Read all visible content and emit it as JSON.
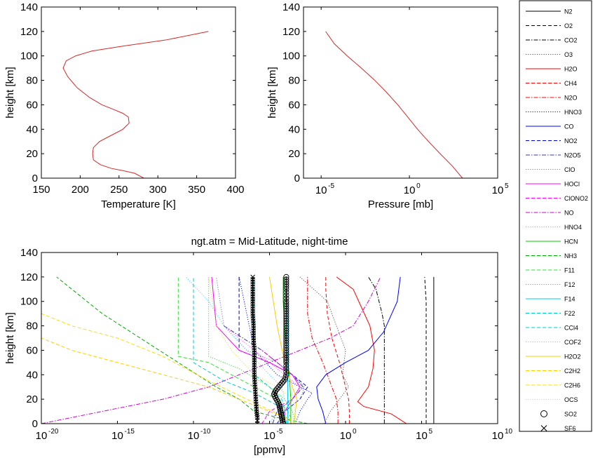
{
  "chart_data": [
    {
      "type": "line",
      "title": "",
      "xlabel": "Temperature [K]",
      "ylabel": "height [km]",
      "xlim": [
        150,
        400
      ],
      "ylim": [
        0,
        140
      ],
      "x_ticks": [
        "150",
        "200",
        "250",
        "300",
        "350",
        "400"
      ],
      "y_ticks": [
        "0",
        "20",
        "40",
        "60",
        "80",
        "100",
        "120",
        "140"
      ],
      "series": [
        {
          "color": "#d62728",
          "x": [
            282,
            270,
            256,
            240,
            226,
            217,
            216,
            217,
            225,
            240,
            255,
            263,
            262,
            255,
            240,
            228,
            212,
            196,
            184,
            178,
            182,
            194,
            215,
            255,
            310,
            365
          ],
          "y": [
            0,
            4,
            6,
            8,
            11,
            15,
            20,
            25,
            30,
            35,
            40,
            45,
            50,
            53,
            57,
            60,
            66,
            74,
            83,
            90,
            96,
            100,
            104,
            108,
            113,
            120
          ]
        }
      ]
    },
    {
      "type": "line",
      "title": "",
      "xlabel": "Pressure [mb]",
      "ylabel": "height [km]",
      "xscale": "log",
      "xlim": [
        1e-06,
        100000
      ],
      "ylim": [
        0,
        140
      ],
      "x_ticks": [
        {
          "base": "10",
          "exp": "-5"
        },
        {
          "base": "10",
          "exp": "0"
        },
        {
          "base": "10",
          "exp": "5"
        }
      ],
      "y_ticks": [
        "0",
        "20",
        "40",
        "60",
        "80",
        "100",
        "120",
        "140"
      ],
      "series": [
        {
          "color": "#d62728",
          "x": [
            1013,
            265,
            55,
            12,
            2.9,
            0.8,
            0.22,
            0.052,
            0.011,
            0.0019,
            0.0003,
            5.5e-05,
            1.8e-05
          ],
          "y": [
            0,
            10,
            20,
            30,
            40,
            50,
            60,
            70,
            80,
            90,
            100,
            110,
            120
          ]
        }
      ]
    },
    {
      "type": "line",
      "title": "ngt.atm = Mid-Latitude, night-time",
      "xlabel": "[ppmv]",
      "ylabel": "height [km]",
      "xscale": "log",
      "xlim": [
        1e-20,
        10000000000.0
      ],
      "ylim": [
        0,
        140
      ],
      "x_ticks": [
        {
          "base": "10",
          "exp": "-20"
        },
        {
          "base": "10",
          "exp": "-15"
        },
        {
          "base": "10",
          "exp": "-10"
        },
        {
          "base": "10",
          "exp": "-5"
        },
        {
          "base": "10",
          "exp": "0"
        },
        {
          "base": "10",
          "exp": "5"
        },
        {
          "base": "10",
          "exp": "10"
        }
      ],
      "y_ticks": [
        "0",
        "20",
        "40",
        "60",
        "80",
        "100",
        "120",
        "140"
      ],
      "legend_position": "right outside",
      "series": [
        {
          "name": "N2",
          "color": "#000000",
          "dash": "solid",
          "lx": [
            5.8,
            5.8,
            5.8
          ],
          "y": [
            0,
            60,
            120
          ]
        },
        {
          "name": "O2",
          "color": "#000000",
          "dash": "dashed",
          "lx": [
            5.3,
            5.3,
            5.3,
            5.2
          ],
          "y": [
            0,
            60,
            100,
            120
          ]
        },
        {
          "name": "CO2",
          "color": "#000000",
          "dash": "dashdot",
          "lx": [
            2.55,
            2.55,
            2.55,
            2.4,
            2.0,
            1.5
          ],
          "y": [
            0,
            60,
            80,
            90,
            110,
            120
          ]
        },
        {
          "name": "O3",
          "color": "#555555",
          "dash": "dotted",
          "lx": [
            -1.4,
            -1.0,
            -0.4,
            0.2,
            -0.2,
            -0.1,
            0.0,
            -0.3,
            -1.2,
            -3.0
          ],
          "y": [
            0,
            10,
            20,
            30,
            40,
            50,
            60,
            70,
            100,
            120
          ]
        },
        {
          "name": "H2O",
          "color": "#ff0000",
          "dash": "solid",
          "lx": [
            4.0,
            3.0,
            1.2,
            0.8,
            1.5,
            1.8,
            1.9,
            1.6,
            0.5,
            -0.6
          ],
          "y": [
            0,
            8,
            14,
            18,
            30,
            45,
            60,
            80,
            110,
            120
          ]
        },
        {
          "name": "CH4",
          "color": "#ff0000",
          "dash": "dashed",
          "lx": [
            0.25,
            0.25,
            0.2,
            0.0,
            -0.4,
            -0.9,
            -1.2,
            -1.3,
            -1.3
          ],
          "y": [
            0,
            10,
            20,
            30,
            50,
            70,
            90,
            110,
            120
          ]
        },
        {
          "name": "N2O",
          "color": "#ff0000",
          "dash": "dashdot",
          "lx": [
            -0.5,
            -0.5,
            -0.6,
            -0.9,
            -1.5,
            -2.2,
            -2.5,
            -2.5
          ],
          "y": [
            0,
            10,
            20,
            30,
            50,
            70,
            90,
            120
          ]
        },
        {
          "name": "HNO3",
          "color": "#0000ff",
          "dash": "dotted",
          "lx": [
            -3.3,
            -3.0,
            -2.5,
            -2.2,
            -3.0,
            -4.5,
            -6.0,
            -7.0
          ],
          "y": [
            0,
            10,
            20,
            25,
            30,
            40,
            60,
            120
          ]
        },
        {
          "name": "CO",
          "color": "#0000ff",
          "dash": "solid",
          "lx": [
            -1.3,
            -1.5,
            -1.8,
            -1.9,
            -1.3,
            0.0,
            1.5,
            2.5,
            3.4,
            3.6
          ],
          "y": [
            0,
            10,
            20,
            30,
            40,
            50,
            60,
            75,
            100,
            120
          ]
        },
        {
          "name": "NO2",
          "color": "#0000cc",
          "dash": "dashed",
          "lx": [
            -4.5,
            -4.0,
            -3.0,
            -2.5,
            -3.5,
            -5.0,
            -7.0,
            -7.0,
            -7.0
          ],
          "y": [
            0,
            10,
            20,
            30,
            40,
            50,
            60,
            80,
            120
          ]
        },
        {
          "name": "N2O5",
          "color": "#3333aa",
          "dash": "dashdot",
          "lx": [
            -4.8,
            -4.5,
            -3.5,
            -2.8,
            -3.5,
            -5.5,
            -8.0
          ],
          "y": [
            0,
            10,
            20,
            30,
            40,
            60,
            80
          ]
        },
        {
          "name": "ClO",
          "color": "#7777cc",
          "dash": "dotted",
          "lx": [
            -4.5,
            -4.0,
            -3.0,
            -2.7,
            -3.5,
            -4.5,
            -6.5,
            -8.0,
            -8.5
          ],
          "y": [
            0,
            10,
            20,
            30,
            40,
            50,
            60,
            80,
            120
          ]
        },
        {
          "name": "HOCl",
          "color": "#ff00ff",
          "dash": "solid",
          "lx": [
            -4.0,
            -4.0,
            -3.5,
            -3.0,
            -3.5,
            -5.0,
            -7.0,
            -8.5,
            -8.8
          ],
          "y": [
            0,
            10,
            20,
            30,
            40,
            50,
            60,
            80,
            120
          ]
        },
        {
          "name": "ClONO2",
          "color": "#ff00ff",
          "dash": "dashed",
          "lx": [
            -5.5,
            -5.0,
            -3.5,
            -3.0,
            -3.5,
            -4.5,
            -5.5
          ],
          "y": [
            0,
            10,
            20,
            30,
            40,
            50,
            60
          ]
        },
        {
          "name": "NO",
          "color": "#cc00cc",
          "dash": "dashdot",
          "lx": [
            -20.0,
            -16.0,
            -12.0,
            -9.0,
            -7.0,
            -5.0,
            -3.0,
            -1.0,
            0.5,
            1.5,
            2.3
          ],
          "y": [
            0,
            10,
            20,
            30,
            40,
            50,
            60,
            70,
            80,
            100,
            120
          ]
        },
        {
          "name": "HNO4",
          "color": "#ff66ff",
          "dash": "dotted",
          "lx": [
            -5.0,
            -4.5,
            -3.5,
            -3.0,
            -4.0,
            -6.0,
            -8.0
          ],
          "y": [
            0,
            10,
            20,
            30,
            40,
            60,
            80
          ]
        },
        {
          "name": "HCN",
          "color": "#00cc00",
          "dash": "solid",
          "lx": [
            -3.6,
            -3.6,
            -3.6,
            -3.7,
            -3.9,
            -4.1,
            -4.1
          ],
          "y": [
            0,
            10,
            20,
            40,
            60,
            100,
            120
          ]
        },
        {
          "name": "NH3",
          "color": "#00aa00",
          "dash": "dashed",
          "lx": [
            -2.5,
            -4.5,
            -6.0,
            -7.0,
            -8.5,
            -11.0,
            -13.5,
            -16.0,
            -19.0
          ],
          "y": [
            0,
            5,
            10,
            20,
            30,
            50,
            70,
            90,
            120
          ]
        },
        {
          "name": "F11",
          "color": "#33dd33",
          "dash": "dashed",
          "lx": [
            -3.6,
            -3.6,
            -3.8,
            -4.5,
            -6.0,
            -9.0,
            -11.0,
            -11.0
          ],
          "y": [
            0,
            5,
            10,
            20,
            30,
            50,
            55,
            120
          ]
        },
        {
          "name": "F12",
          "color": "#33dd33",
          "dash": "dotted",
          "lx": [
            -3.4,
            -3.4,
            -3.5,
            -4.0,
            -5.0,
            -7.0,
            -9.0,
            -9.0
          ],
          "y": [
            0,
            5,
            10,
            20,
            30,
            45,
            55,
            120
          ]
        },
        {
          "name": "F14",
          "color": "#00ccff",
          "dash": "solid",
          "lx": [
            -3.8,
            -3.8,
            -3.8,
            -3.8,
            -3.9
          ],
          "y": [
            0,
            10,
            40,
            80,
            120
          ]
        },
        {
          "name": "F22",
          "color": "#00cccc",
          "dash": "dashed",
          "lx": [
            -4.0,
            -4.0,
            -4.2,
            -5.0,
            -6.0,
            -6.0
          ],
          "y": [
            0,
            10,
            20,
            30,
            40,
            120
          ]
        },
        {
          "name": "CCl4",
          "color": "#00cccc",
          "dash": "dashed",
          "lx": [
            -3.9,
            -3.9,
            -4.5,
            -6.0,
            -8.0,
            -10.0,
            -10.0
          ],
          "y": [
            0,
            5,
            15,
            25,
            35,
            50,
            120
          ]
        },
        {
          "name": "COF2",
          "color": "#66ccff",
          "dash": "dotted",
          "lx": [
            -5.0,
            -4.5,
            -4.0,
            -4.2,
            -5.0,
            -6.5,
            -8.0,
            -9.0,
            -10.5
          ],
          "y": [
            0,
            10,
            20,
            30,
            40,
            60,
            80,
            100,
            120
          ]
        },
        {
          "name": "H2O2",
          "color": "#ffcc00",
          "dash": "solid",
          "lx": [
            -3.4,
            -3.3,
            -3.2,
            -3.5,
            -4.0,
            -4.5,
            -5.0
          ],
          "y": [
            0,
            10,
            20,
            30,
            50,
            80,
            120
          ]
        },
        {
          "name": "C2H2",
          "color": "#ffcc00",
          "dash": "dashed",
          "lx": [
            -3.5,
            -4.0,
            -5.0,
            -7.0,
            -9.0,
            -12.0,
            -15.0,
            -18.0,
            -20.0
          ],
          "y": [
            0,
            5,
            10,
            20,
            30,
            40,
            50,
            60,
            70
          ]
        },
        {
          "name": "C2H6",
          "color": "#ffdd00",
          "dash": "dashed",
          "lx": [
            -3.3,
            -3.8,
            -4.8,
            -6.5,
            -9.0,
            -12.0,
            -15.0,
            -18.0,
            -20.0
          ],
          "y": [
            0,
            5,
            10,
            20,
            35,
            55,
            70,
            80,
            90
          ]
        },
        {
          "name": "OCS",
          "color": "#dddd66",
          "dash": "dotted",
          "lx": [
            -3.3,
            -3.3,
            -3.5,
            -4.5,
            -6.0,
            -7.5,
            -8.5,
            -9.0
          ],
          "y": [
            0,
            10,
            20,
            30,
            40,
            60,
            80,
            120
          ]
        },
        {
          "name": "SO2",
          "color": "#000000",
          "dash": "none",
          "marker": "circle",
          "lx": [
            -4.1,
            -4.15,
            -4.2,
            -4.25,
            -4.3,
            -4.35,
            -4.45,
            -4.6,
            -4.7,
            -4.6,
            -4.4,
            -4.2,
            -4.0,
            -3.9,
            -3.9,
            -3.9,
            -3.9,
            -3.9,
            -3.9,
            -3.9,
            -3.9,
            -3.9,
            -3.9,
            -3.9
          ],
          "y": [
            0,
            3,
            6,
            9,
            12,
            15,
            18,
            21,
            24,
            27,
            30,
            33,
            36,
            40,
            45,
            50,
            60,
            70,
            80,
            90,
            100,
            105,
            110,
            120
          ]
        },
        {
          "name": "SF6",
          "color": "#000000",
          "dash": "none",
          "marker": "x",
          "lx": [
            -5.8,
            -5.8,
            -5.85,
            -5.9,
            -5.95,
            -6.0,
            -6.0,
            -6.0,
            -6.05,
            -6.05,
            -6.1,
            -6.1,
            -6.1,
            -6.1
          ],
          "y": [
            0,
            5,
            10,
            20,
            30,
            40,
            50,
            60,
            70,
            80,
            90,
            100,
            110,
            120
          ]
        }
      ]
    }
  ]
}
